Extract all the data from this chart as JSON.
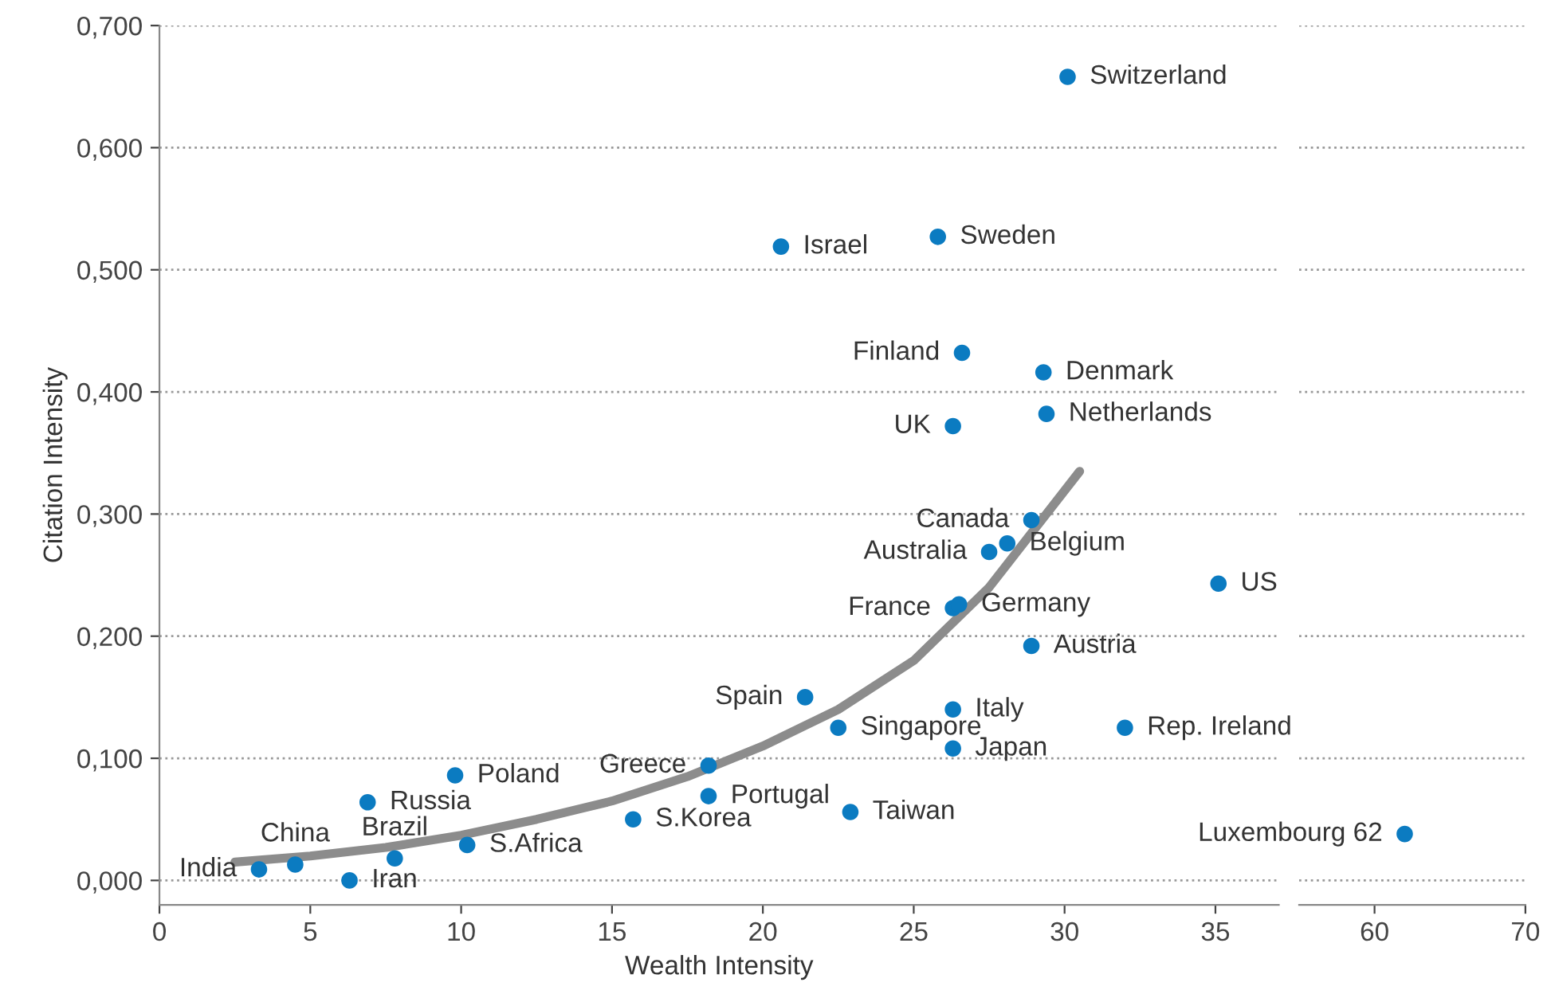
{
  "chart_data": [
    {
      "type": "scatter",
      "xlabel": "Wealth Intensity",
      "ylabel": "Citation Intensity",
      "xlim": [
        0,
        37.1
      ],
      "xticks": [
        0,
        5,
        10,
        15,
        20,
        25,
        30,
        35
      ],
      "ylim": [
        -0.02,
        0.7
      ],
      "yticks": [
        {
          "value": 0,
          "label": "0,000"
        },
        {
          "value": 0.1,
          "label": "0,100"
        },
        {
          "value": 0.2,
          "label": "0,200"
        },
        {
          "value": 0.3,
          "label": "0,300"
        },
        {
          "value": 0.4,
          "label": "0,400"
        },
        {
          "value": 0.5,
          "label": "0,500"
        },
        {
          "value": 0.6,
          "label": "0,600"
        },
        {
          "value": 0.7,
          "label": "0,700"
        }
      ],
      "grid": "y",
      "series": [
        {
          "marker": "circle",
          "color": "#0b7bc1",
          "x": [
            3.3,
            4.5,
            6.3,
            7.8,
            6.9,
            9.8,
            10.2,
            15.7,
            18.2,
            18.2,
            21.4,
            22.5,
            22.9,
            20.6,
            25.8,
            30.1,
            26.6,
            29.3,
            26.3,
            29.4,
            28.9,
            28.1,
            27.5,
            26.3,
            26.5,
            28.9,
            35.1,
            26.3,
            26.3,
            32.0
          ],
          "values": [
            0.009,
            0.013,
            0.0,
            0.018,
            0.064,
            0.086,
            0.029,
            0.05,
            0.094,
            0.069,
            0.15,
            0.125,
            0.056,
            0.519,
            0.527,
            0.658,
            0.432,
            0.416,
            0.372,
            0.382,
            0.295,
            0.276,
            0.269,
            0.223,
            0.226,
            0.192,
            0.243,
            0.14,
            0.108,
            0.125
          ]
        },
        {
          "type": "line",
          "marker": "none",
          "line_style": "solid",
          "color": "#8c8c8c",
          "x": [
            2.5,
            5,
            7.5,
            10,
            12.5,
            15,
            17.5,
            20,
            22.5,
            25,
            27.5,
            30.5
          ],
          "values": [
            0.015,
            0.02,
            0.027,
            0.037,
            0.05,
            0.065,
            0.085,
            0.11,
            0.14,
            0.18,
            0.24,
            0.335
          ]
        }
      ],
      "annotations": [
        {
          "text": "India",
          "x": 3.3,
          "y": 0.009
        },
        {
          "text": "China",
          "x": 4.5,
          "y": 0.013
        },
        {
          "text": "Iran",
          "x": 6.3,
          "y": 0.0
        },
        {
          "text": "Brazil",
          "x": 7.8,
          "y": 0.018
        },
        {
          "text": "Russia",
          "x": 6.9,
          "y": 0.064
        },
        {
          "text": "Poland",
          "x": 9.8,
          "y": 0.086
        },
        {
          "text": "S.Africa",
          "x": 10.2,
          "y": 0.029
        },
        {
          "text": "S.Korea",
          "x": 15.7,
          "y": 0.05
        },
        {
          "text": "Greece",
          "x": 18.2,
          "y": 0.094
        },
        {
          "text": "Portugal",
          "x": 18.2,
          "y": 0.069
        },
        {
          "text": "Spain",
          "x": 21.4,
          "y": 0.15
        },
        {
          "text": "Singapore",
          "x": 22.5,
          "y": 0.125
        },
        {
          "text": "Taiwan",
          "x": 22.9,
          "y": 0.056
        },
        {
          "text": "Israel",
          "x": 20.6,
          "y": 0.519
        },
        {
          "text": "Sweden",
          "x": 25.8,
          "y": 0.527
        },
        {
          "text": "Switzerland",
          "x": 30.1,
          "y": 0.658
        },
        {
          "text": "Finland",
          "x": 26.6,
          "y": 0.432
        },
        {
          "text": "Denmark",
          "x": 29.3,
          "y": 0.416
        },
        {
          "text": "UK",
          "x": 26.3,
          "y": 0.372
        },
        {
          "text": "Netherlands",
          "x": 29.4,
          "y": 0.382
        },
        {
          "text": "Canada",
          "x": 28.9,
          "y": 0.295
        },
        {
          "text": "Belgium",
          "x": 28.1,
          "y": 0.276
        },
        {
          "text": "Australia",
          "x": 27.5,
          "y": 0.269
        },
        {
          "text": "France",
          "x": 26.3,
          "y": 0.223
        },
        {
          "text": "Germany",
          "x": 26.5,
          "y": 0.226
        },
        {
          "text": "Austria",
          "x": 28.9,
          "y": 0.192
        },
        {
          "text": "US",
          "x": 35.1,
          "y": 0.243
        },
        {
          "text": "Italy",
          "x": 26.3,
          "y": 0.14
        },
        {
          "text": "Japan",
          "x": 26.3,
          "y": 0.108
        },
        {
          "text": "Rep. Ireland",
          "x": 32.0,
          "y": 0.125
        }
      ]
    },
    {
      "type": "scatter",
      "xlim": [
        55,
        70
      ],
      "xticks": [
        60,
        70
      ],
      "ylim": [
        -0.02,
        0.7
      ],
      "tick_labels": "x",
      "grid": "y",
      "series": [
        {
          "marker": "circle",
          "color": "#0b7bc1",
          "x": [
            62
          ],
          "values": [
            0.038
          ]
        }
      ],
      "annotations": [
        {
          "text": "Luxembourg 62",
          "x": 62,
          "y": 0.038
        }
      ]
    }
  ]
}
